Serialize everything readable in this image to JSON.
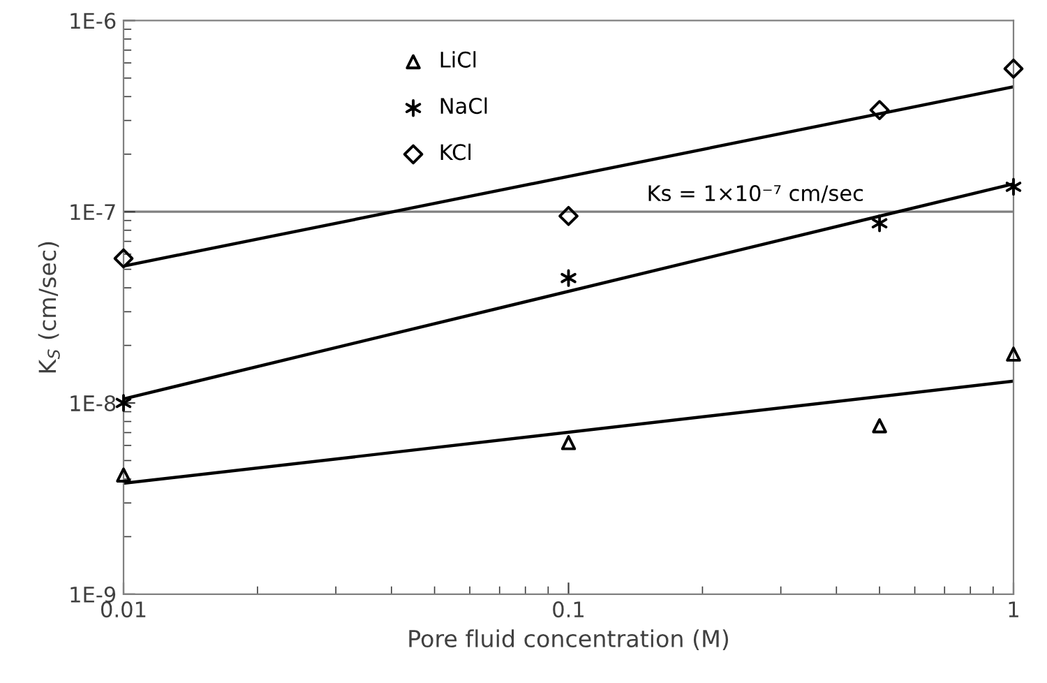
{
  "chart_data": {
    "type": "scatter",
    "xlabel": "Pore fluid concentration (M)",
    "ylabel": "K$_{S}$ (cm/sec)",
    "log": "xy",
    "xlim": [
      0.01,
      1
    ],
    "ylim": [
      1e-09,
      1e-06
    ],
    "xticks": [
      0.01,
      0.1,
      1
    ],
    "yticks": [
      {
        "value": 1e-09,
        "label": "1E-9"
      },
      {
        "value": 1e-08,
        "label": "1E-8"
      },
      {
        "value": 1e-07,
        "label": "1E-7"
      },
      {
        "value": 1e-06,
        "label": "1E-6"
      }
    ],
    "grid": false,
    "legend": "top left",
    "series": [
      {
        "name": "LiCl",
        "color": "#000000",
        "marker": "triangle",
        "x": [
          0.01,
          0.1,
          0.5,
          1
        ],
        "values": [
          4.2e-09,
          6.2e-09,
          7.6e-09,
          1.8e-08
        ]
      },
      {
        "name": "NaCl",
        "color": "#000000",
        "marker": "cross",
        "x": [
          0.01,
          0.1,
          0.5,
          1
        ],
        "values": [
          1e-08,
          4.5e-08,
          8.7e-08,
          1.35e-07
        ]
      },
      {
        "name": "KCl",
        "color": "#000000",
        "marker": "diamond",
        "x": [
          0.01,
          0.1,
          0.5,
          1
        ],
        "values": [
          5.7e-08,
          9.5e-08,
          3.4e-07,
          5.6e-07
        ]
      },
      {
        "type": "line",
        "color": "#000000",
        "marker": "none",
        "line_style": "solid",
        "x": [
          0.01,
          1
        ],
        "values": [
          3.8e-09,
          1.3e-08
        ]
      },
      {
        "type": "line",
        "color": "#000000",
        "marker": "none",
        "line_style": "solid",
        "x": [
          0.01,
          1
        ],
        "values": [
          1.05e-08,
          1.4e-07
        ]
      },
      {
        "type": "line",
        "color": "#000000",
        "marker": "none",
        "line_style": "solid",
        "x": [
          0.01,
          1
        ],
        "values": [
          5.2e-08,
          4.5e-07
        ]
      }
    ],
    "ref_lines": [
      {
        "axis": "y",
        "value": 1e-07,
        "color": "#808080"
      }
    ],
    "annotations": [
      "Ks = 1×10⁻⁷ cm/sec"
    ]
  }
}
